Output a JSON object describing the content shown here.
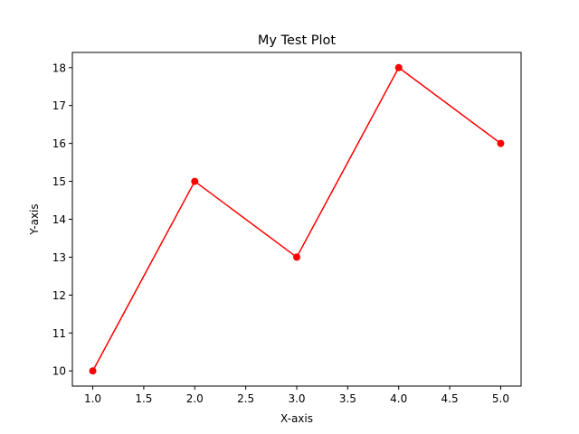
{
  "chart_data": {
    "type": "line",
    "title": "My Test Plot",
    "xlabel": "X-axis",
    "ylabel": "Y-axis",
    "x": [
      1.0,
      2.0,
      3.0,
      4.0,
      5.0
    ],
    "series": [
      {
        "values": [
          10,
          15,
          13,
          18,
          16
        ],
        "color": "#ff0000",
        "marker": "circle"
      }
    ],
    "xlim": [
      0.8,
      5.2
    ],
    "ylim": [
      9.6,
      18.4
    ],
    "xticks": [
      1.0,
      1.5,
      2.0,
      2.5,
      3.0,
      3.5,
      4.0,
      4.5,
      5.0
    ],
    "xtick_labels": [
      "1.0",
      "1.5",
      "2.0",
      "2.5",
      "3.0",
      "3.5",
      "4.0",
      "4.5",
      "5.0"
    ],
    "yticks": [
      10,
      11,
      12,
      13,
      14,
      15,
      16,
      17,
      18
    ],
    "ytick_labels": [
      "10",
      "11",
      "12",
      "13",
      "14",
      "15",
      "16",
      "17",
      "18"
    ],
    "grid": false,
    "legend": "none"
  }
}
